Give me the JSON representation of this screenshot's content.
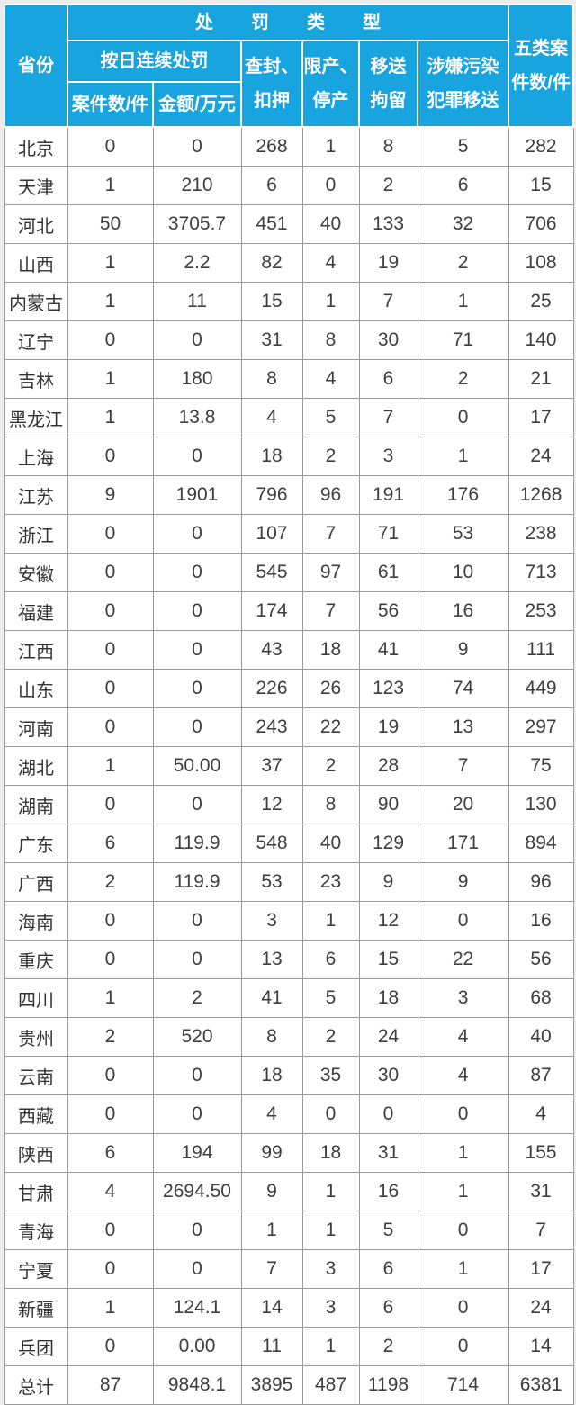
{
  "colors": {
    "header_bg": "#18a4df",
    "header_text": "#ffffff",
    "body_text": "#3e3e3e",
    "grid_line": "#9a9a9a",
    "page_bg": "#ececec"
  },
  "chart_data": {
    "type": "table",
    "title": "",
    "grid": true,
    "column_headers": {
      "province": "省份",
      "penalty_type_group": "处罚类型",
      "daily_penalty_group": "按日连续处罚",
      "daily_cases": "案件数/件",
      "daily_amount": "金额/万元",
      "seizure": "查封、\n扣押",
      "production_limit": "限产、\n停产",
      "detention_transfer": "移送\n拘留",
      "pollution_crime_transfer": "涉嫌污染\n犯罪移送",
      "five_type_total": "五类案\n件数/件"
    },
    "total_label": "总计",
    "rows": [
      {
        "province": "北京",
        "values": [
          "0",
          "0",
          "268",
          "1",
          "8",
          "5",
          "282"
        ]
      },
      {
        "province": "天津",
        "values": [
          "1",
          "210",
          "6",
          "0",
          "2",
          "6",
          "15"
        ]
      },
      {
        "province": "河北",
        "values": [
          "50",
          "3705.7",
          "451",
          "40",
          "133",
          "32",
          "706"
        ]
      },
      {
        "province": "山西",
        "values": [
          "1",
          "2.2",
          "82",
          "4",
          "19",
          "2",
          "108"
        ]
      },
      {
        "province": "内蒙古",
        "values": [
          "1",
          "11",
          "15",
          "1",
          "7",
          "1",
          "25"
        ]
      },
      {
        "province": "辽宁",
        "values": [
          "0",
          "0",
          "31",
          "8",
          "30",
          "71",
          "140"
        ]
      },
      {
        "province": "吉林",
        "values": [
          "1",
          "180",
          "8",
          "4",
          "6",
          "2",
          "21"
        ]
      },
      {
        "province": "黑龙江",
        "values": [
          "1",
          "13.8",
          "4",
          "5",
          "7",
          "0",
          "17"
        ]
      },
      {
        "province": "上海",
        "values": [
          "0",
          "0",
          "18",
          "2",
          "3",
          "1",
          "24"
        ]
      },
      {
        "province": "江苏",
        "values": [
          "9",
          "1901",
          "796",
          "96",
          "191",
          "176",
          "1268"
        ]
      },
      {
        "province": "浙江",
        "values": [
          "0",
          "0",
          "107",
          "7",
          "71",
          "53",
          "238"
        ]
      },
      {
        "province": "安徽",
        "values": [
          "0",
          "0",
          "545",
          "97",
          "61",
          "10",
          "713"
        ]
      },
      {
        "province": "福建",
        "values": [
          "0",
          "0",
          "174",
          "7",
          "56",
          "16",
          "253"
        ]
      },
      {
        "province": "江西",
        "values": [
          "0",
          "0",
          "43",
          "18",
          "41",
          "9",
          "111"
        ]
      },
      {
        "province": "山东",
        "values": [
          "0",
          "0",
          "226",
          "26",
          "123",
          "74",
          "449"
        ]
      },
      {
        "province": "河南",
        "values": [
          "0",
          "0",
          "243",
          "22",
          "19",
          "13",
          "297"
        ]
      },
      {
        "province": "湖北",
        "values": [
          "1",
          "50.00",
          "37",
          "2",
          "28",
          "7",
          "75"
        ]
      },
      {
        "province": "湖南",
        "values": [
          "0",
          "0",
          "12",
          "8",
          "90",
          "20",
          "130"
        ]
      },
      {
        "province": "广东",
        "values": [
          "6",
          "119.9",
          "548",
          "40",
          "129",
          "171",
          "894"
        ]
      },
      {
        "province": "广西",
        "values": [
          "2",
          "119.9",
          "53",
          "23",
          "9",
          "9",
          "96"
        ]
      },
      {
        "province": "海南",
        "values": [
          "0",
          "0",
          "3",
          "1",
          "12",
          "0",
          "16"
        ]
      },
      {
        "province": "重庆",
        "values": [
          "0",
          "0",
          "13",
          "6",
          "15",
          "22",
          "56"
        ]
      },
      {
        "province": "四川",
        "values": [
          "1",
          "2",
          "41",
          "5",
          "18",
          "3",
          "68"
        ]
      },
      {
        "province": "贵州",
        "values": [
          "2",
          "520",
          "8",
          "2",
          "24",
          "4",
          "40"
        ]
      },
      {
        "province": "云南",
        "values": [
          "0",
          "0",
          "18",
          "35",
          "30",
          "4",
          "87"
        ]
      },
      {
        "province": "西藏",
        "values": [
          "0",
          "0",
          "4",
          "0",
          "0",
          "0",
          "4"
        ]
      },
      {
        "province": "陕西",
        "values": [
          "6",
          "194",
          "99",
          "18",
          "31",
          "1",
          "155"
        ]
      },
      {
        "province": "甘肃",
        "values": [
          "4",
          "2694.50",
          "9",
          "1",
          "16",
          "1",
          "31"
        ]
      },
      {
        "province": "青海",
        "values": [
          "0",
          "0",
          "1",
          "1",
          "5",
          "0",
          "7"
        ]
      },
      {
        "province": "宁夏",
        "values": [
          "0",
          "0",
          "7",
          "3",
          "6",
          "1",
          "17"
        ]
      },
      {
        "province": "新疆",
        "values": [
          "1",
          "124.1",
          "14",
          "3",
          "6",
          "0",
          "24"
        ]
      },
      {
        "province": "兵团",
        "values": [
          "0",
          "0.00",
          "11",
          "1",
          "2",
          "0",
          "14"
        ]
      },
      {
        "province": "总计",
        "values": [
          "87",
          "9848.1",
          "3895",
          "487",
          "1198",
          "714",
          "6381"
        ]
      }
    ]
  }
}
